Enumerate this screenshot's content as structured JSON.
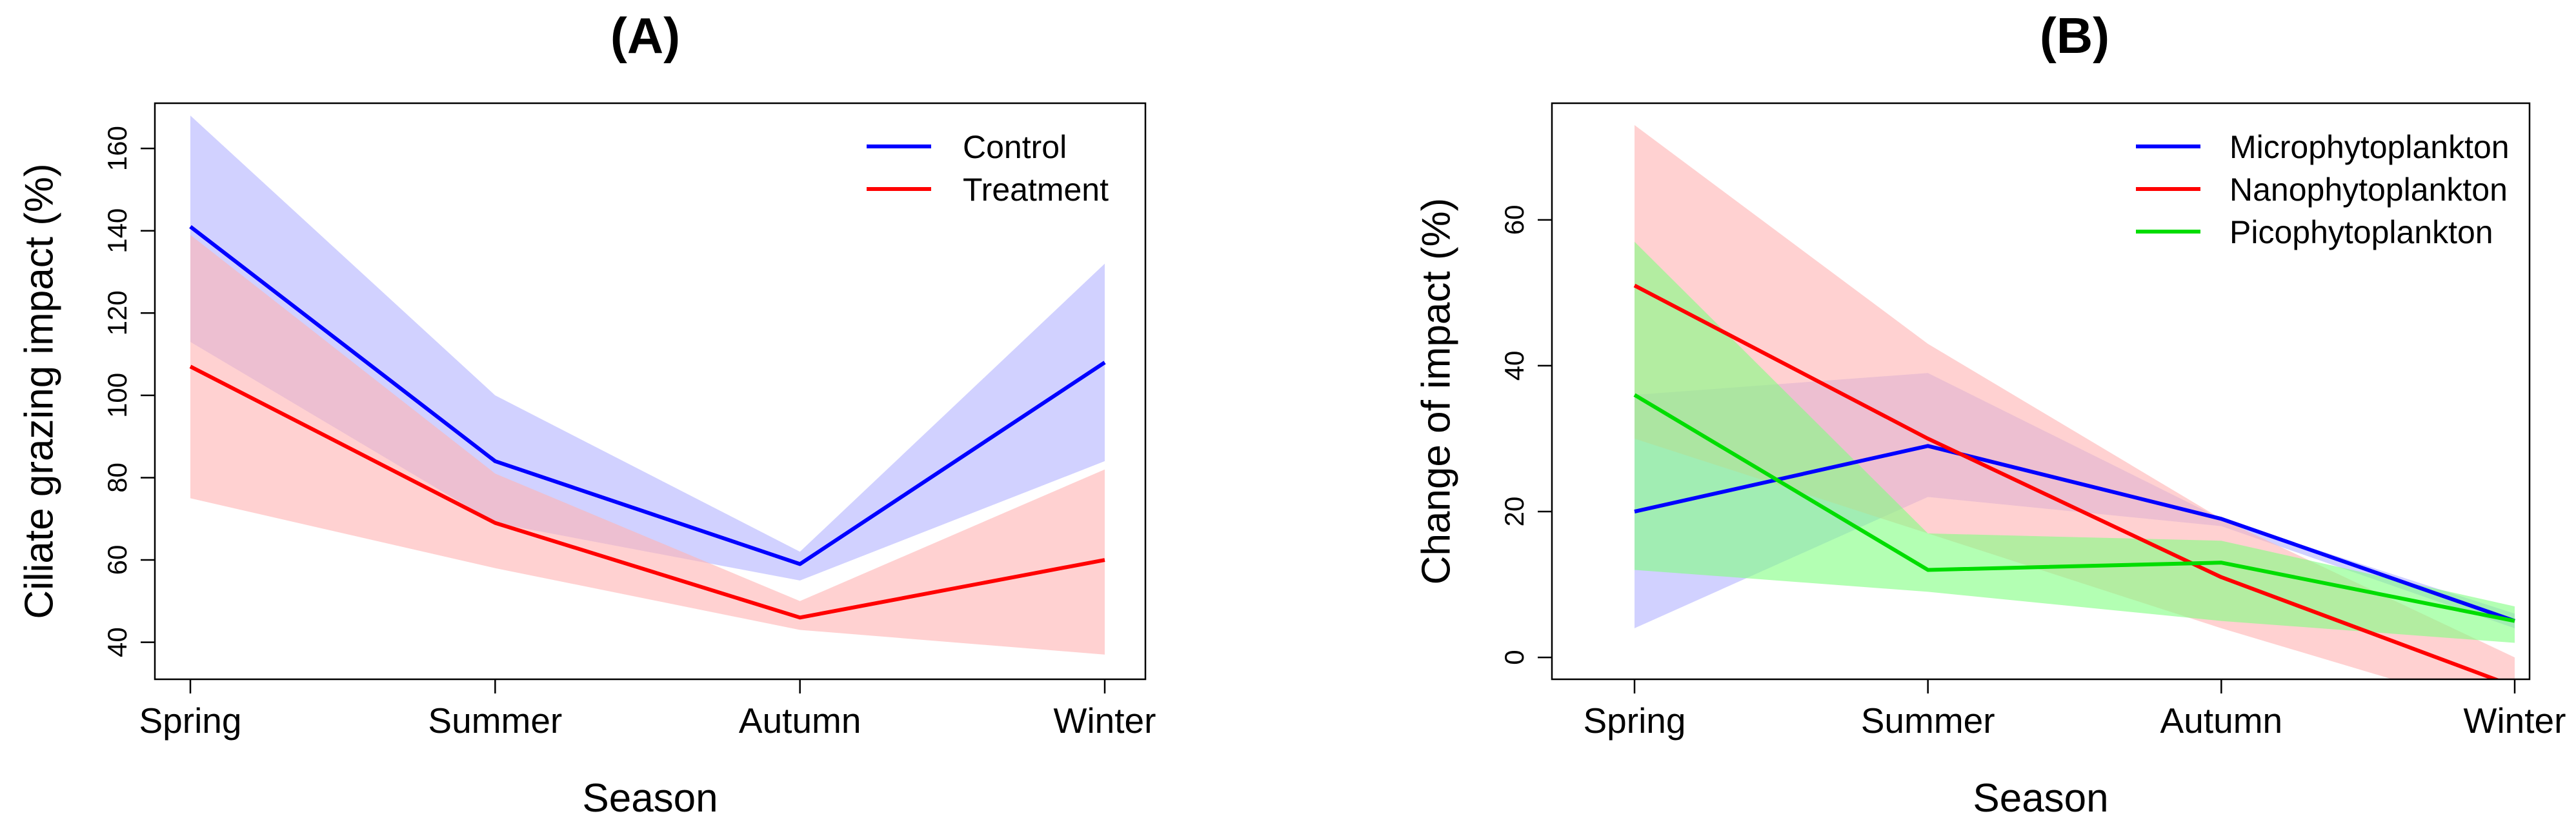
{
  "chart_data": [
    {
      "panel_label": "(A)",
      "type": "line",
      "xlabel": "Season",
      "ylabel": "Ciliate grazing impact (%)",
      "categories": [
        "Spring",
        "Summer",
        "Autumn",
        "Winter"
      ],
      "ylim": [
        31,
        171
      ],
      "yticks": [
        40,
        60,
        80,
        100,
        120,
        140,
        160
      ],
      "legend": {
        "placement": "top-right",
        "entries": [
          "Control",
          "Treatment"
        ]
      },
      "series": [
        {
          "name": "Control",
          "color": "#0000ff",
          "fill_color": "#b3b3ff",
          "values": [
            141,
            84,
            59,
            108
          ],
          "lower": [
            113,
            69,
            55,
            84
          ],
          "upper": [
            168,
            100,
            62,
            132
          ]
        },
        {
          "name": "Treatment",
          "color": "#ff0000",
          "fill_color": "#ffb3b3",
          "values": [
            107,
            69,
            46,
            60
          ],
          "lower": [
            75,
            58,
            43,
            37
          ],
          "upper": [
            139,
            81,
            50,
            82
          ]
        }
      ]
    },
    {
      "panel_label": "(B)",
      "type": "line",
      "xlabel": "Season",
      "ylabel": "Change of impact (%)",
      "categories": [
        "Spring",
        "Summer",
        "Autumn",
        "Winter"
      ],
      "ylim": [
        -3,
        76
      ],
      "yticks": [
        0,
        20,
        40,
        60
      ],
      "legend": {
        "placement": "top-right",
        "entries": [
          "Microphytoplankton",
          "Nanophytoplankton",
          "Picophytoplankton"
        ]
      },
      "series": [
        {
          "name": "Microphytoplankton",
          "color": "#0000ff",
          "fill_color": "#b3b3ff",
          "values": [
            20,
            29,
            19,
            5
          ],
          "lower": [
            4,
            22,
            18,
            4
          ],
          "upper": [
            36,
            39,
            19,
            6
          ]
        },
        {
          "name": "Nanophytoplankton",
          "color": "#ff0000",
          "fill_color": "#ffb3b3",
          "values": [
            51,
            30,
            11,
            -4
          ],
          "lower": [
            30,
            17,
            4,
            -8
          ],
          "upper": [
            73,
            43,
            19,
            0
          ]
        },
        {
          "name": "Picophytoplankton",
          "color": "#00dd00",
          "fill_color": "#80ff80",
          "values": [
            36,
            12,
            13,
            5
          ],
          "lower": [
            12,
            9,
            5,
            2
          ],
          "upper": [
            57,
            17,
            16,
            7
          ]
        }
      ]
    }
  ]
}
